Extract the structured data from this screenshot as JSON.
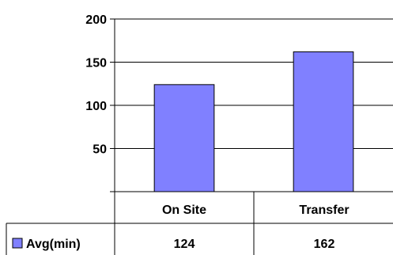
{
  "chart_data": {
    "type": "bar",
    "categories": [
      "On Site",
      "Transfer"
    ],
    "series": [
      {
        "name": "Avg(min)",
        "values": [
          124,
          162
        ]
      }
    ],
    "yticks": [
      "200",
      "150",
      "100",
      "50"
    ],
    "ylim": [
      0,
      200
    ],
    "grid": true,
    "legend": "data-table",
    "colors": {
      "bar": "#8080FF",
      "bar_stroke": "#000000",
      "grid": "#000000"
    },
    "table": {
      "row_label": "Avg(min)",
      "cells": [
        "124",
        "162"
      ]
    }
  }
}
